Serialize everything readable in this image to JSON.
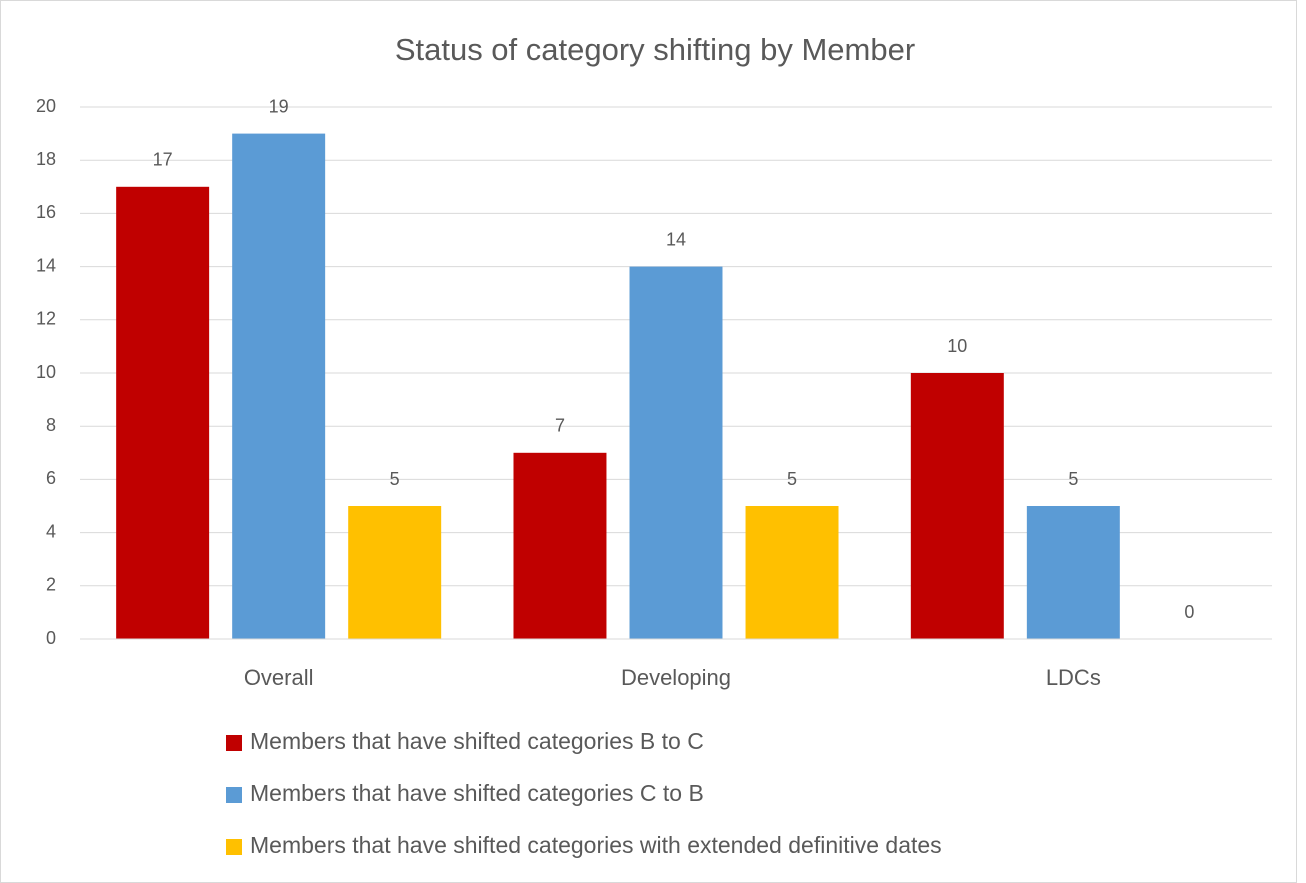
{
  "chart_data": {
    "type": "bar",
    "title": "Status of category shifting by Member",
    "categories": [
      "Overall",
      "Developing",
      "LDCs"
    ],
    "series": [
      {
        "name": "Members that have shifted categories B to C",
        "color": "#c00000",
        "values": [
          17,
          7,
          10
        ]
      },
      {
        "name": "Members that have shifted categories C to B",
        "color": "#5b9bd5",
        "values": [
          19,
          14,
          5
        ]
      },
      {
        "name": "Members that have shifted categories with extended definitive dates",
        "color": "#ffc000",
        "values": [
          5,
          5,
          0
        ]
      }
    ],
    "ylim": [
      0,
      20
    ],
    "yticks": [
      0,
      2,
      4,
      6,
      8,
      10,
      12,
      14,
      16,
      18,
      20
    ],
    "grid": true,
    "legend": "bottom"
  }
}
